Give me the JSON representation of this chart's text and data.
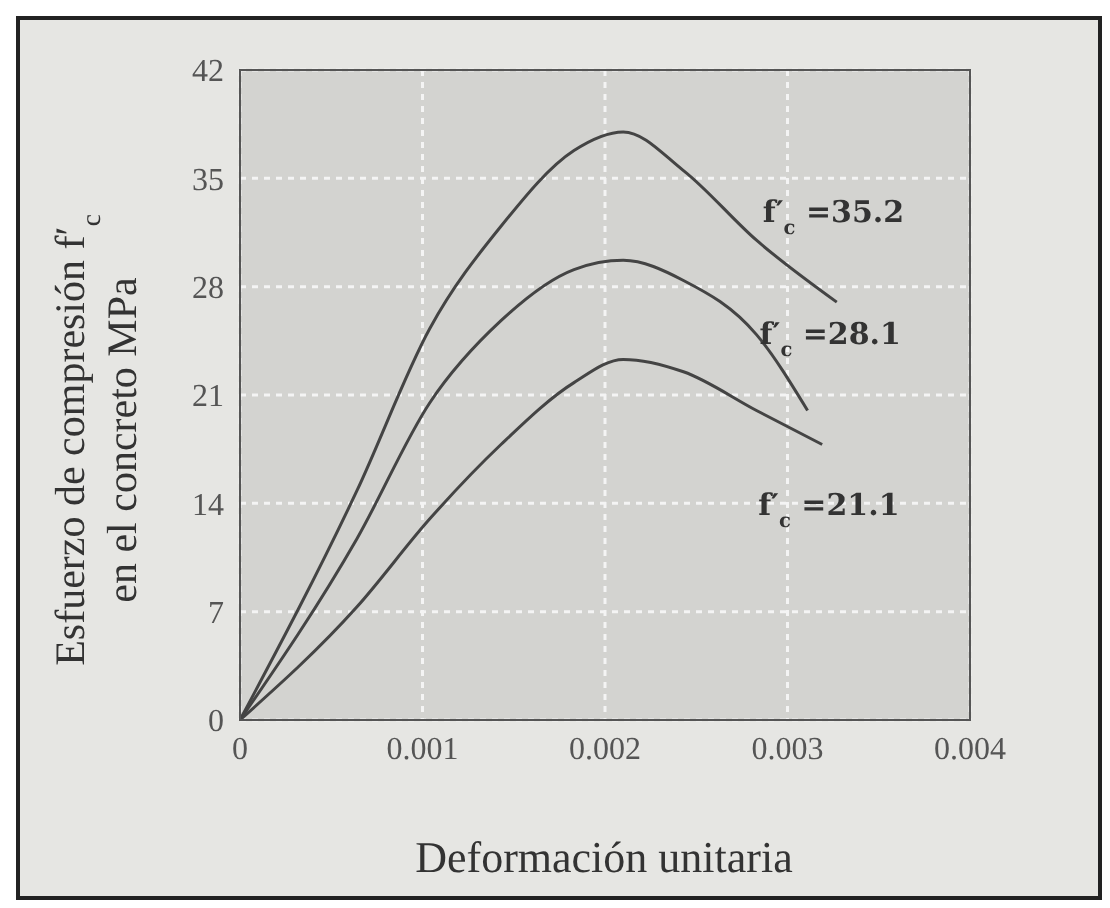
{
  "chart_data": {
    "type": "line",
    "xlabel": "Deformación unitaria",
    "ylabel": "Esfuerzo de compresión f′$_{c}$\nen el concreto MPa",
    "series": [
      {
        "name": "f′$_{c}$ =35.2",
        "color": "#444444",
        "x": [
          0,
          0.00064,
          0.00104,
          0.00143,
          0.00183,
          0.0021,
          0.00243,
          0.00283,
          0.00327
        ],
        "values": [
          0,
          14.8,
          25.3,
          31.9,
          36.8,
          38,
          35.5,
          31,
          27
        ]
      },
      {
        "name": "f′$_{c}$ =28.1",
        "color": "#444444",
        "x": [
          0,
          0.00064,
          0.00104,
          0.00143,
          0.00183,
          0.0021,
          0.00243,
          0.00283,
          0.00311
        ],
        "values": [
          0,
          11.7,
          20.5,
          25.8,
          29.1,
          29.7,
          28.4,
          24.9,
          20
        ]
      },
      {
        "name": "f′$_{c}$ =21.1",
        "color": "#444444",
        "x": [
          0,
          0.00064,
          0.00104,
          0.00143,
          0.00183,
          0.0021,
          0.00243,
          0.00283,
          0.00319
        ],
        "values": [
          0,
          7.3,
          13,
          17.8,
          21.8,
          23.3,
          22.5,
          20,
          17.8
        ]
      }
    ],
    "xlim": [
      0,
      0.004
    ],
    "xticks": [
      0,
      0.001,
      0.002,
      0.003,
      0.004
    ],
    "ylim": [
      0,
      42
    ],
    "yticks": [
      0,
      7,
      14,
      21,
      28,
      35,
      42
    ],
    "grid": true,
    "marker": "none",
    "line_style": "solid"
  }
}
